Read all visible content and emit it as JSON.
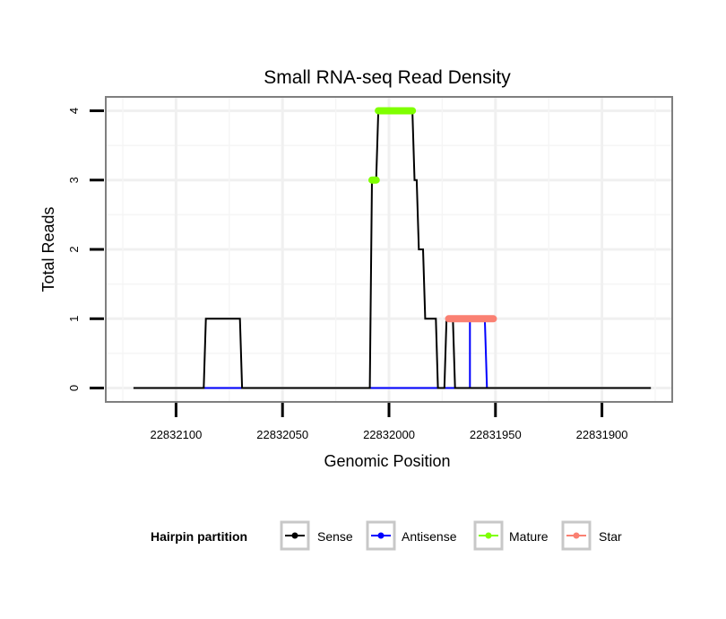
{
  "chart_data": {
    "type": "line",
    "title": "Small RNA-seq Read Density",
    "xlabel": "Genomic Position",
    "ylabel": "Total Reads",
    "x_reversed": true,
    "xlim": [
      22832133,
      22831867
    ],
    "ylim": [
      -0.2,
      4.2
    ],
    "x_ticks": [
      22832100,
      22832050,
      22832000,
      22831950,
      22831900
    ],
    "x_tick_labels": [
      "22832100",
      "22832050",
      "22832000",
      "22831950",
      "22831900"
    ],
    "y_ticks": [
      0,
      1,
      2,
      3,
      4
    ],
    "y_tick_labels": [
      "0",
      "1",
      "2",
      "3",
      "4"
    ],
    "grid": true,
    "legend": {
      "title": "Hairpin partition",
      "position": "bottom",
      "entries": [
        {
          "name": "Sense",
          "color": "#000000"
        },
        {
          "name": "Antisense",
          "color": "#0000ff"
        },
        {
          "name": "Mature",
          "color": "#7fff00"
        },
        {
          "name": "Star",
          "color": "#fa8072"
        }
      ]
    },
    "series": [
      {
        "name": "Sense",
        "color": "#000000",
        "x": [
          22832120,
          22832087,
          22832086,
          22832070,
          22832069,
          22832009,
          22832008,
          22832006,
          22832005,
          22831989,
          22831988,
          22831987,
          22831986,
          22831984,
          22831983,
          22831978,
          22831977,
          22831974,
          22831973,
          22831970,
          22831969,
          22831954,
          22831953,
          22831877
        ],
        "y": [
          0,
          0,
          1,
          1,
          0,
          0,
          3,
          3,
          4,
          4,
          3,
          3,
          2,
          2,
          1,
          1,
          0,
          0,
          1,
          1,
          0,
          0,
          0,
          0
        ]
      },
      {
        "name": "Antisense",
        "color": "#0000ff",
        "x": [
          22832087,
          22832070,
          22831970,
          22831969,
          22831962,
          22831962,
          22831955,
          22831954
        ],
        "y": [
          0,
          0,
          0,
          0,
          0,
          1,
          1,
          0
        ]
      },
      {
        "name": "Mature",
        "color": "#7fff00",
        "segments": [
          {
            "x": [
              22832008,
              22832006
            ],
            "y": [
              3,
              3
            ]
          },
          {
            "x": [
              22832005,
              22831989
            ],
            "y": [
              4,
              4
            ]
          }
        ]
      },
      {
        "name": "Star",
        "color": "#fa8072",
        "segments": [
          {
            "x": [
              22831972,
              22831951
            ],
            "y": [
              1,
              1
            ]
          }
        ]
      }
    ]
  }
}
